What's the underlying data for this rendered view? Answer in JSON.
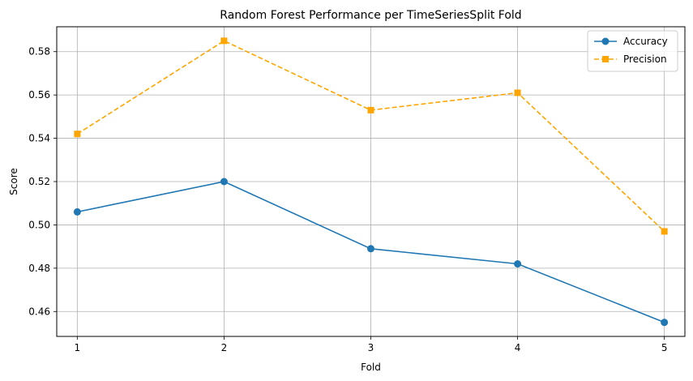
{
  "chart_data": {
    "type": "line",
    "title": "Random Forest Performance per TimeSeriesSplit Fold",
    "xlabel": "Fold",
    "ylabel": "Score",
    "x": [
      1,
      2,
      3,
      4,
      5
    ],
    "x_tick_labels": [
      "1",
      "2",
      "3",
      "4",
      "5"
    ],
    "y_ticks": [
      0.46,
      0.48,
      0.5,
      0.52,
      0.54,
      0.56,
      0.58
    ],
    "y_tick_labels": [
      "0.46",
      "0.48",
      "0.50",
      "0.52",
      "0.54",
      "0.56",
      "0.58"
    ],
    "xlim": [
      0.86,
      5.14
    ],
    "ylim": [
      0.4485,
      0.5915
    ],
    "grid": true,
    "legend_position": "upper right",
    "series": [
      {
        "name": "Accuracy",
        "values": [
          0.506,
          0.52,
          0.489,
          0.482,
          0.455
        ],
        "color": "#1f77b4",
        "line_style": "solid",
        "marker": "circle"
      },
      {
        "name": "Precision",
        "values": [
          0.542,
          0.585,
          0.553,
          0.561,
          0.497
        ],
        "color": "#ffa500",
        "line_style": "dashed",
        "marker": "square"
      }
    ]
  }
}
